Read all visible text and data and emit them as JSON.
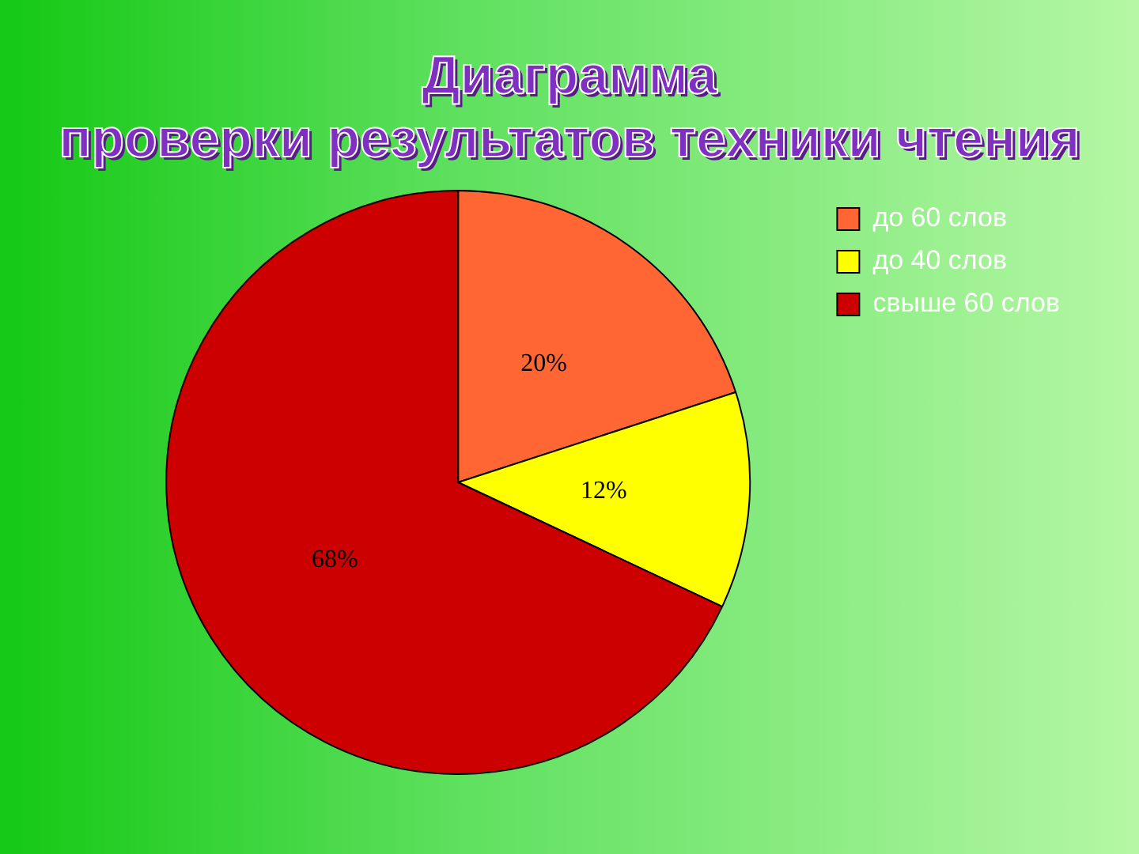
{
  "chart_data": {
    "type": "pie",
    "title": "Диаграмма проверки результатов техники чтения",
    "categories": [
      "до 60 слов",
      "до 40 слов",
      "свыше 60 слов"
    ],
    "values": [
      20,
      12,
      68
    ],
    "colors": [
      "#ff6633",
      "#ffff00",
      "#cc0000"
    ],
    "value_labels": [
      "20%",
      "12%",
      "68%"
    ],
    "legend": "top right"
  }
}
